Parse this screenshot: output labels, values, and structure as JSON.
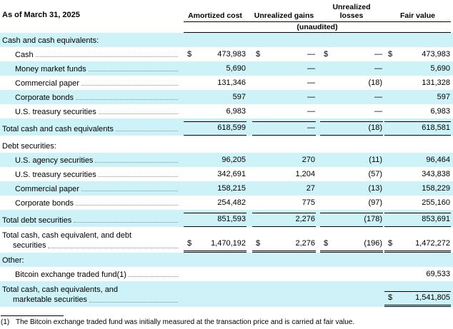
{
  "currency": "$",
  "header": {
    "as_of": "As of March 31, 2025",
    "columns": [
      "Amortized cost",
      "Unrealized gains",
      "Unrealized losses",
      "Fair value"
    ],
    "subheader": "(unaudited)"
  },
  "colors": {
    "stripe": "#cdf2f7"
  },
  "rows": [
    {
      "label": "Cash and cash equivalents:"
    },
    {
      "label": "Cash",
      "values": [
        "473,983",
        "—",
        "—",
        "473,983"
      ]
    },
    {
      "label": "Money market funds",
      "values": [
        "5,690",
        "—",
        "—",
        "5,690"
      ]
    },
    {
      "label": "Commercial paper",
      "values": [
        "131,346",
        "—",
        "(18)",
        "131,328"
      ]
    },
    {
      "label": "Corporate bonds",
      "values": [
        "597",
        "—",
        "—",
        "597"
      ]
    },
    {
      "label": "U.S. treasury securities",
      "values": [
        "6,983",
        "—",
        "—",
        "6,983"
      ]
    },
    {
      "label": "Total cash and cash equivalents",
      "values": [
        "618,599",
        "—",
        "(18)",
        "618,581"
      ]
    },
    {
      "label": "Debt securities:"
    },
    {
      "label": "U.S. agency securities",
      "values": [
        "96,205",
        "270",
        "(11)",
        "96,464"
      ]
    },
    {
      "label": "U.S. treasury securities",
      "values": [
        "342,691",
        "1,204",
        "(57)",
        "343,838"
      ]
    },
    {
      "label": "Commercial paper",
      "values": [
        "158,215",
        "27",
        "(13)",
        "158,229"
      ]
    },
    {
      "label": "Corporate bonds",
      "values": [
        "254,482",
        "775",
        "(97)",
        "255,160"
      ]
    },
    {
      "label": "Total debt securities",
      "values": [
        "851,593",
        "2,276",
        "(178)",
        "853,691"
      ]
    },
    {
      "line1": "Total cash, cash equivalent, and debt",
      "line2": "securities",
      "values": [
        "1,470,192",
        "2,276",
        "(196)",
        "1,472,272"
      ]
    },
    {
      "label": "Other:"
    },
    {
      "label": "Bitcoin exchange traded fund(1)",
      "fair_value": "69,533"
    },
    {
      "line1": "Total cash, cash equivalents, and",
      "line2": "marketable securities",
      "fair_value": "1,541,805"
    }
  ],
  "footnote": {
    "marker": "(1)",
    "text": "The Bitcoin exchange traded fund was initially measured at the transaction price and is carried at fair value."
  }
}
